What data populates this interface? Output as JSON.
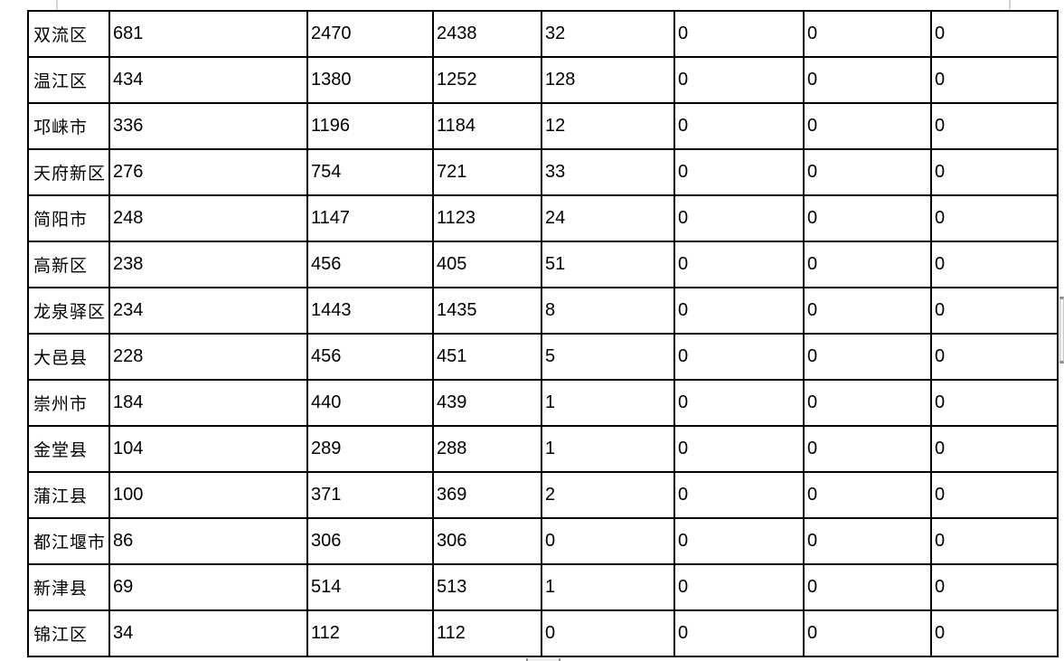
{
  "table": {
    "rows": [
      {
        "district": "双流区",
        "values": [
          "681",
          "2470",
          "2438",
          "32",
          "0",
          "0",
          "0"
        ]
      },
      {
        "district": "温江区",
        "values": [
          "434",
          "1380",
          "1252",
          "128",
          "0",
          "0",
          "0"
        ]
      },
      {
        "district": "邛崃市",
        "values": [
          "336",
          "1196",
          "1184",
          "12",
          "0",
          "0",
          "0"
        ]
      },
      {
        "district": "天府新区",
        "values": [
          "276",
          "754",
          "721",
          "33",
          "0",
          "0",
          "0"
        ]
      },
      {
        "district": "简阳市",
        "values": [
          "248",
          "1147",
          "1123",
          "24",
          "0",
          "0",
          "0"
        ]
      },
      {
        "district": "高新区",
        "values": [
          "238",
          "456",
          "405",
          "51",
          "0",
          "0",
          "0"
        ]
      },
      {
        "district": "龙泉驿区",
        "values": [
          "234",
          "1443",
          "1435",
          "8",
          "0",
          "0",
          "0"
        ]
      },
      {
        "district": "大邑县",
        "values": [
          "228",
          "456",
          "451",
          "5",
          "0",
          "0",
          "0"
        ]
      },
      {
        "district": "崇州市",
        "values": [
          "184",
          "440",
          "439",
          "1",
          "0",
          "0",
          "0"
        ]
      },
      {
        "district": "金堂县",
        "values": [
          "104",
          "289",
          "288",
          "1",
          "0",
          "0",
          "0"
        ]
      },
      {
        "district": "蒲江县",
        "values": [
          "100",
          "371",
          "369",
          "2",
          "0",
          "0",
          "0"
        ]
      },
      {
        "district": "都江堰市",
        "values": [
          "86",
          "306",
          "306",
          "0",
          "0",
          "0",
          "0"
        ]
      },
      {
        "district": "新津县",
        "values": [
          "69",
          "514",
          "513",
          "1",
          "0",
          "0",
          "0"
        ]
      },
      {
        "district": "锦江区",
        "values": [
          "34",
          "112",
          "112",
          "0",
          "0",
          "0",
          "0"
        ]
      }
    ]
  },
  "colors": {
    "table_border": "#000000",
    "text": "#000000",
    "background": "#ffffff",
    "scrollbar_thumb_fill": "#f4f4f4",
    "scrollbar_thumb_cap": "#8f8f8f",
    "top_tick": "#d6d6d6"
  }
}
